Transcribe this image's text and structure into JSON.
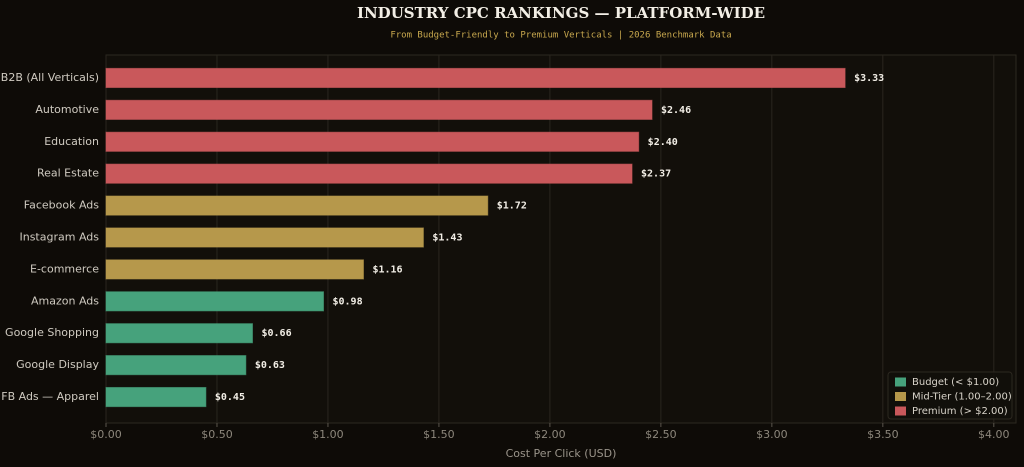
{
  "chart_data": {
    "type": "barh",
    "title": "INDUSTRY CPC RANKINGS — PLATFORM-WIDE",
    "subtitle": "From Budget-Friendly to Premium Verticals  |  2026 Benchmark Data",
    "xlabel": "Cost Per Click (USD)",
    "categories": [
      "B2B (All Verticals)",
      "Automotive",
      "Education",
      "Real Estate",
      "Facebook Ads",
      "Instagram Ads",
      "E-commerce",
      "Amazon Ads",
      "Google Shopping",
      "Google Display",
      "FB Ads — Apparel"
    ],
    "series": [
      {
        "name": "Budget  (< $1.00)",
        "color": "#46a27c",
        "values": [
          null,
          null,
          null,
          null,
          null,
          null,
          null,
          0.98,
          0.66,
          0.63,
          0.45
        ],
        "value_labels": [
          null,
          null,
          null,
          null,
          null,
          null,
          null,
          "$0.98",
          "$0.66",
          "$0.63",
          "$0.45"
        ]
      },
      {
        "name": "Mid-Tier  (1.00–2.00)",
        "color": "#b6984b",
        "values": [
          null,
          null,
          null,
          null,
          1.72,
          1.43,
          1.16,
          null,
          null,
          null,
          null
        ],
        "value_labels": [
          null,
          null,
          null,
          null,
          "$1.72",
          "$1.43",
          "$1.16",
          null,
          null,
          null,
          null
        ]
      },
      {
        "name": "Premium  (> $2.00)",
        "color": "#c9585b",
        "values": [
          3.33,
          2.46,
          2.4,
          2.37,
          null,
          null,
          null,
          null,
          null,
          null,
          null
        ],
        "value_labels": [
          "$3.33",
          "$2.46",
          "$2.40",
          "$2.37",
          null,
          null,
          null,
          null,
          null,
          null,
          null
        ]
      }
    ],
    "xlim": [
      0,
      4.1
    ],
    "xticks": [
      {
        "value": 0,
        "label": "$0.00"
      },
      {
        "value": 0.5,
        "label": "$0.50"
      },
      {
        "value": 1,
        "label": "$1.00"
      },
      {
        "value": 1.5,
        "label": "$1.50"
      },
      {
        "value": 2,
        "label": "$2.00"
      },
      {
        "value": 2.5,
        "label": "$2.50"
      },
      {
        "value": 3,
        "label": "$3.00"
      },
      {
        "value": 3.5,
        "label": "$3.50"
      },
      {
        "value": 4,
        "label": "$4.00"
      }
    ],
    "grid": true,
    "legend": "lower right"
  }
}
